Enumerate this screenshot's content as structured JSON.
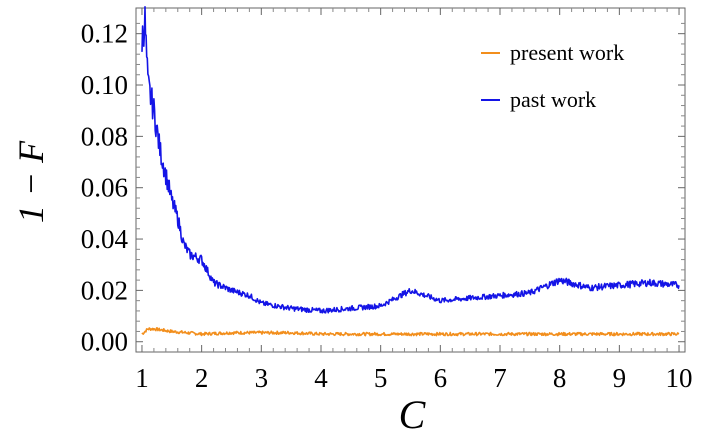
{
  "chart_data": {
    "type": "line",
    "xlabel": "C",
    "ylabel": "1 − F",
    "xlim": [
      0.9,
      10.1
    ],
    "ylim": [
      -0.004,
      0.13
    ],
    "x_ticks": [
      1,
      2,
      3,
      4,
      5,
      6,
      7,
      8,
      9,
      10
    ],
    "y_ticks": [
      0.0,
      0.02,
      0.04,
      0.06,
      0.08,
      0.1,
      0.12
    ],
    "y_tick_labels": [
      "0.00",
      "0.02",
      "0.04",
      "0.06",
      "0.08",
      "0.10",
      "0.12"
    ],
    "x_tick_labels": [
      "1",
      "2",
      "3",
      "4",
      "5",
      "6",
      "7",
      "8",
      "9",
      "10"
    ],
    "legend_position": "top-right",
    "grid": false,
    "series": [
      {
        "name": "present work",
        "color": "#f28e1c",
        "x": [
          1.0,
          1.1,
          1.2,
          1.5,
          2.0,
          2.5,
          3.0,
          3.5,
          4.0,
          4.5,
          5.0,
          5.5,
          6.0,
          6.5,
          7.0,
          7.5,
          8.0,
          8.5,
          9.0,
          9.5,
          10.0
        ],
        "values": [
          0.003,
          0.005,
          0.005,
          0.004,
          0.003,
          0.0035,
          0.0035,
          0.0035,
          0.003,
          0.003,
          0.003,
          0.003,
          0.003,
          0.003,
          0.003,
          0.003,
          0.003,
          0.003,
          0.003,
          0.003,
          0.003
        ]
      },
      {
        "name": "past work",
        "color": "#1414e6",
        "x": [
          1.0,
          1.05,
          1.1,
          1.2,
          1.3,
          1.4,
          1.5,
          1.6,
          1.7,
          1.8,
          2.0,
          2.2,
          2.5,
          2.8,
          3.0,
          3.5,
          4.0,
          4.5,
          5.0,
          5.5,
          6.0,
          6.5,
          7.0,
          7.5,
          8.0,
          8.5,
          9.0,
          9.5,
          10.0
        ],
        "values": [
          0.118,
          0.125,
          0.1,
          0.09,
          0.075,
          0.065,
          0.055,
          0.048,
          0.038,
          0.034,
          0.032,
          0.023,
          0.02,
          0.018,
          0.015,
          0.013,
          0.012,
          0.013,
          0.014,
          0.02,
          0.016,
          0.017,
          0.018,
          0.019,
          0.024,
          0.021,
          0.022,
          0.023,
          0.022
        ]
      }
    ]
  }
}
